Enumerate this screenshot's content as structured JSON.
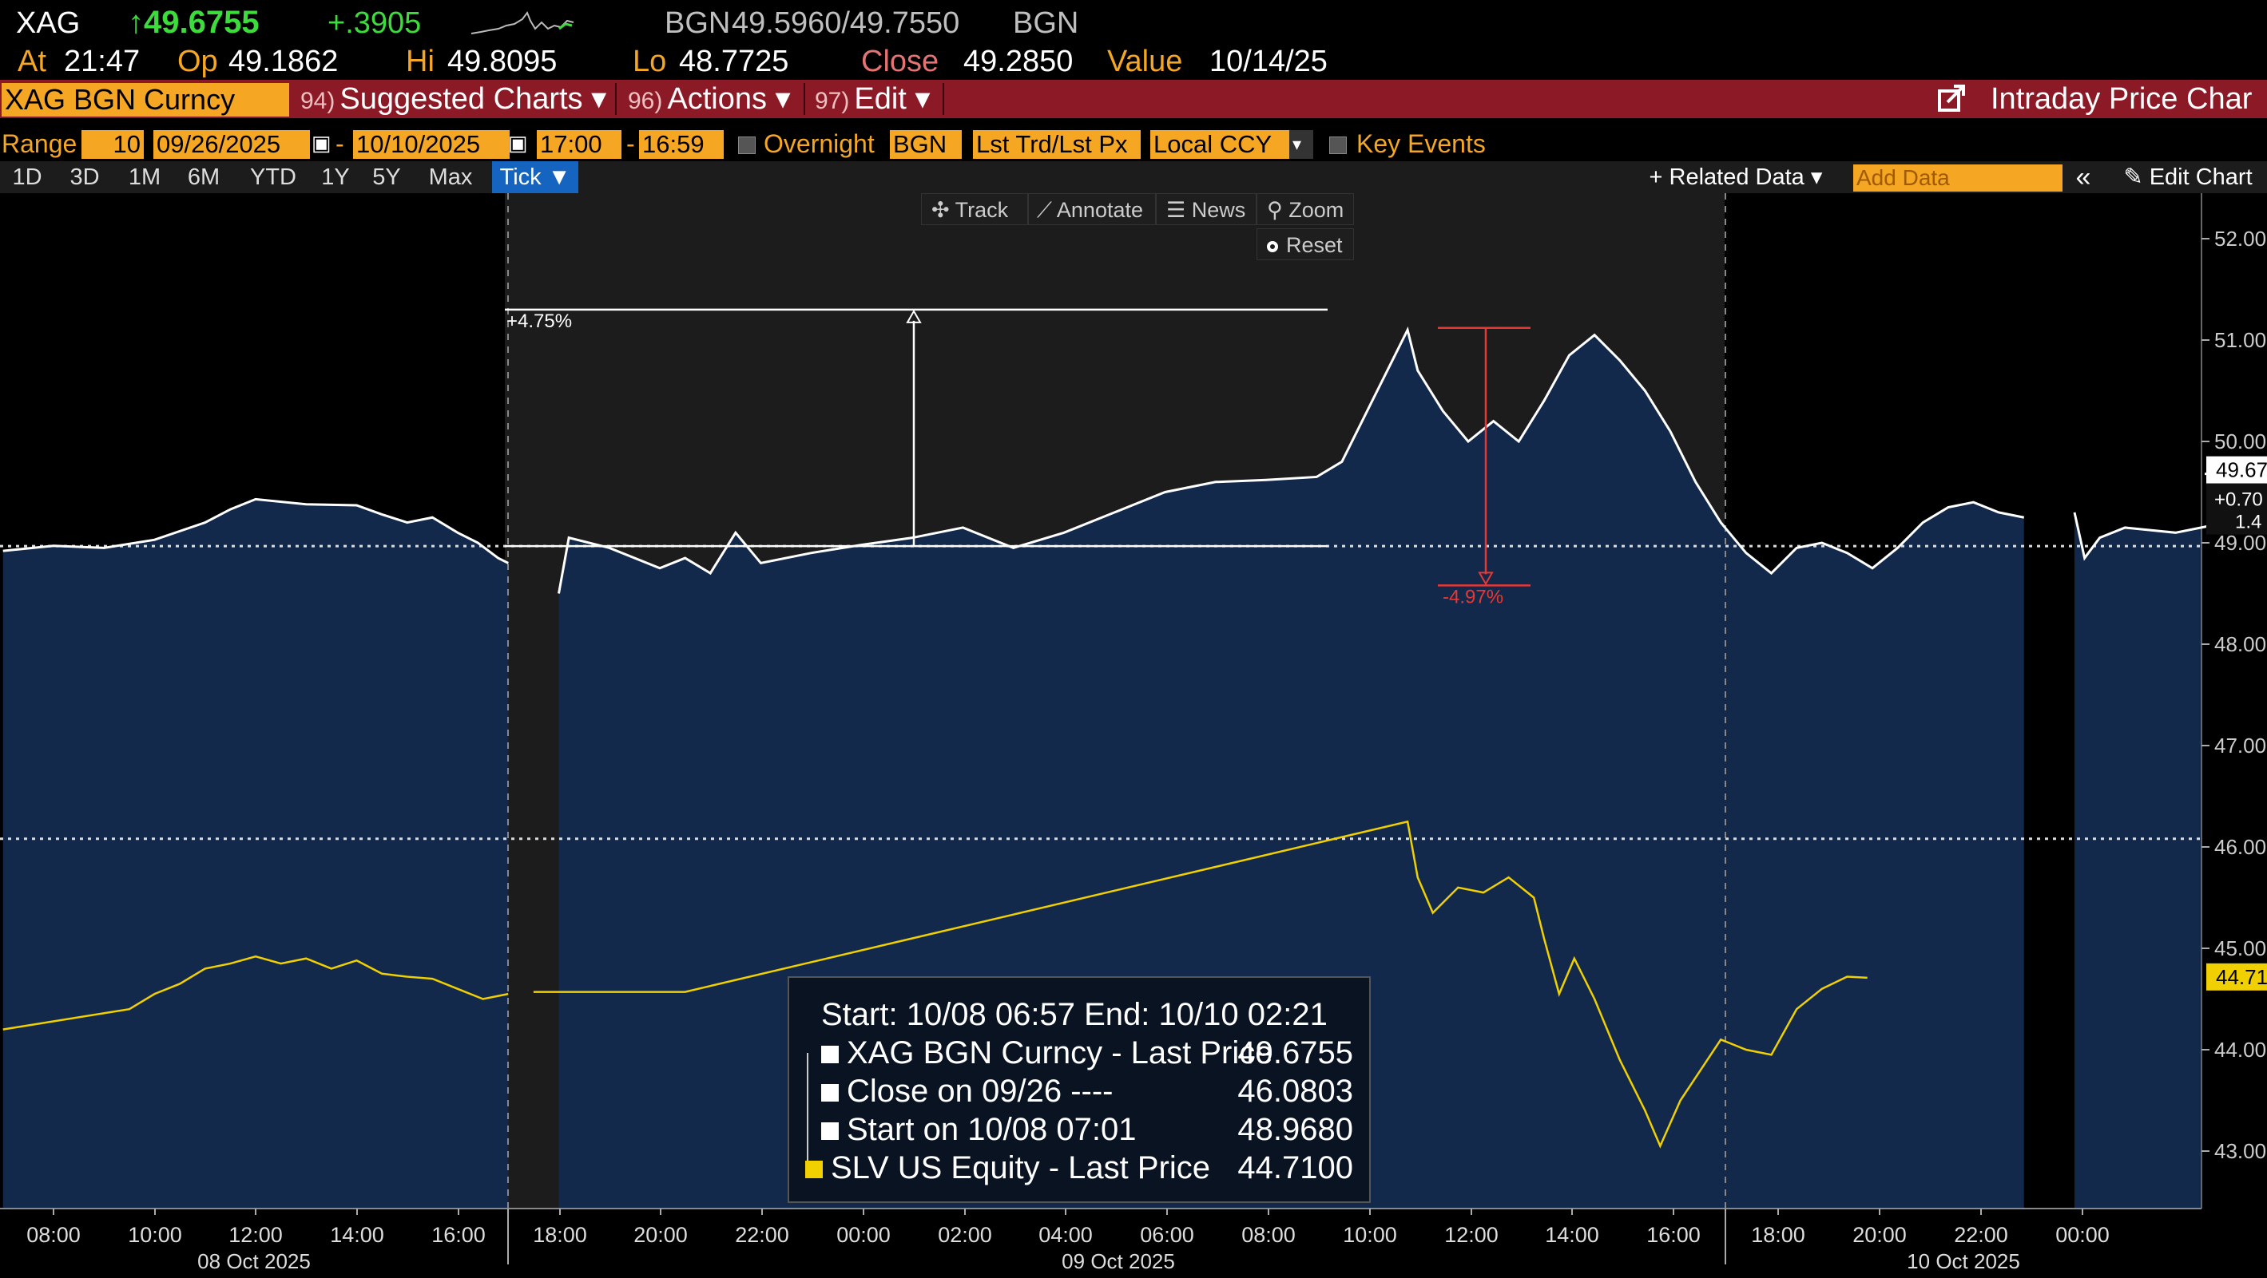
{
  "header": {
    "ticker": "XAG",
    "price": "↑49.6755",
    "change": "+.3905",
    "source_label": "BGN",
    "bid_ask": "49.5960/49.7550",
    "source_label2": "BGN",
    "at_label": "At",
    "at_time": "21:47",
    "open_label": "Op",
    "open": "49.1862",
    "hi_label": "Hi",
    "hi": "49.8095",
    "lo_label": "Lo",
    "lo": "48.7725",
    "close_label": "Close",
    "close": "49.2850",
    "value_label": "Value",
    "value_date": "10/14/25"
  },
  "menubar": {
    "security": "XAG BGN Curncy",
    "items": [
      {
        "num": "94)",
        "label": "Suggested Charts ▾"
      },
      {
        "num": "96)",
        "label": "Actions ▾"
      },
      {
        "num": "97)",
        "label": "Edit ▾"
      }
    ],
    "title": "Intraday Price Char"
  },
  "rangebar": {
    "range_label": "Range",
    "range_value": "10",
    "start_date": "09/26/2025",
    "dash": "-",
    "end_date": "10/10/2025",
    "start_time": "17:00",
    "end_time": "16:59",
    "overnight_label": "Overnight",
    "source": "BGN",
    "price_type": "Lst Trd/Lst Px",
    "currency": "Local CCY",
    "key_events_label": "Key Events"
  },
  "periodbar": {
    "periods": [
      "1D",
      "3D",
      "1M",
      "6M",
      "YTD",
      "1Y",
      "5Y",
      "Max"
    ],
    "tick_label": "Tick ▼",
    "related_data": "+ Related Data ▾",
    "add_data_placeholder": "Add Data",
    "collapse": "«",
    "edit_chart": "✎ Edit Chart"
  },
  "toolbar": {
    "track": "✣ Track",
    "annotate": "⟋ Annotate",
    "news": "☰ News",
    "zoom": "⚲ Zoom",
    "reset": "Reset"
  },
  "annotations": {
    "up_pct": "+4.75%",
    "down_pct": "-4.97%"
  },
  "legend": {
    "header": "Start: 10/08 06:57 End: 10/10 02:21",
    "rows": [
      {
        "label": "XAG BGN Curncy - Last Price",
        "value": "49.6755",
        "color": "#ffffff"
      },
      {
        "label": "Close on 09/26 ----",
        "value": "46.0803",
        "color": "#ffffff"
      },
      {
        "label": "Start on 10/08 07:01",
        "value": "48.9680",
        "color": "#ffffff"
      },
      {
        "label": "SLV US Equity - Last Price",
        "value": "44.7100",
        "color": "#f0d000"
      }
    ]
  },
  "axis_tags": {
    "last_price": "49.67",
    "change": "+0.70",
    "pct": "1.4",
    "slv_last": "44.71"
  },
  "colors": {
    "background": "#000000",
    "area_fill": "#13294b",
    "xag_line": "#ffffff",
    "slv_line": "#f0d000",
    "annotation_down": "#e53935",
    "accent": "#f5a623",
    "menubar": "#8c1a26"
  },
  "chart_data": {
    "type": "line",
    "y_axis": {
      "ticks": [
        "52.00",
        "51.00",
        "50.00",
        "49.00",
        "48.00",
        "47.00",
        "46.00",
        "45.00",
        "44.00",
        "43.00"
      ],
      "ylim": [
        42.5,
        52.2
      ]
    },
    "x_axis": {
      "tick_labels": [
        "08:00",
        "10:00",
        "12:00",
        "14:00",
        "16:00",
        "18:00",
        "20:00",
        "22:00",
        "00:00",
        "02:00",
        "04:00",
        "06:00",
        "08:00",
        "10:00",
        "12:00",
        "14:00",
        "16:00",
        "18:00",
        "20:00",
        "22:00",
        "00:00"
      ],
      "date_labels": [
        "08 Oct 2025",
        "09 Oct 2025",
        "10 Oct 2025"
      ]
    },
    "reference_lines": [
      {
        "name": "Close on 09/26",
        "y": 46.0803
      },
      {
        "name": "Start on 10/08 07:01",
        "y": 48.968
      }
    ],
    "series": [
      {
        "name": "XAG BGN Curncy - Last Price",
        "segments": [
          [
            [
              7.0,
              48.92
            ],
            [
              8.0,
              48.97
            ],
            [
              9.0,
              48.95
            ],
            [
              10.0,
              49.03
            ],
            [
              11.0,
              49.2
            ],
            [
              11.5,
              49.33
            ],
            [
              12.0,
              49.43
            ],
            [
              13.0,
              49.38
            ],
            [
              14.0,
              49.37
            ],
            [
              14.5,
              49.28
            ],
            [
              15.0,
              49.2
            ],
            [
              15.5,
              49.25
            ],
            [
              16.0,
              49.1
            ],
            [
              16.4,
              49.0
            ],
            [
              16.8,
              48.85
            ],
            [
              17.0,
              48.8
            ]
          ],
          [
            [
              18.0,
              48.5
            ],
            [
              18.2,
              49.05
            ],
            [
              19.0,
              48.95
            ],
            [
              20.0,
              48.75
            ],
            [
              20.5,
              48.85
            ],
            [
              21.0,
              48.7
            ],
            [
              21.5,
              49.1
            ],
            [
              22.0,
              48.8
            ],
            [
              23.0,
              48.9
            ],
            [
              24.0,
              48.98
            ],
            [
              25.0,
              49.05
            ],
            [
              26.0,
              49.15
            ],
            [
              27.0,
              48.95
            ],
            [
              28.0,
              49.1
            ],
            [
              29.0,
              49.3
            ],
            [
              30.0,
              49.5
            ],
            [
              31.0,
              49.6
            ],
            [
              32.0,
              49.62
            ],
            [
              33.0,
              49.65
            ],
            [
              33.5,
              49.8
            ],
            [
              34.0,
              50.3
            ],
            [
              34.5,
              50.8
            ],
            [
              34.8,
              51.1
            ],
            [
              35.0,
              50.7
            ],
            [
              35.5,
              50.3
            ],
            [
              36.0,
              50.0
            ],
            [
              36.5,
              50.2
            ],
            [
              37.0,
              50.0
            ],
            [
              37.5,
              50.4
            ],
            [
              38.0,
              50.85
            ],
            [
              38.5,
              51.05
            ],
            [
              39.0,
              50.8
            ],
            [
              39.5,
              50.5
            ],
            [
              40.0,
              50.1
            ],
            [
              40.5,
              49.6
            ],
            [
              41.0,
              49.2
            ],
            [
              41.5,
              48.9
            ],
            [
              42.0,
              48.7
            ],
            [
              42.5,
              48.95
            ],
            [
              43.0,
              49.0
            ],
            [
              43.5,
              48.9
            ],
            [
              44.0,
              48.75
            ],
            [
              44.5,
              48.95
            ],
            [
              45.0,
              49.2
            ],
            [
              45.5,
              49.35
            ],
            [
              46.0,
              49.4
            ],
            [
              46.5,
              49.3
            ],
            [
              47.0,
              49.25
            ]
          ],
          [
            [
              48.0,
              49.3
            ],
            [
              48.2,
              48.85
            ],
            [
              48.5,
              49.05
            ],
            [
              49.0,
              49.15
            ],
            [
              50.0,
              49.1
            ],
            [
              51.0,
              49.2
            ],
            [
              51.5,
              49.45
            ],
            [
              52.0,
              49.65
            ],
            [
              52.5,
              49.75
            ],
            [
              53.0,
              49.7
            ],
            [
              53.3,
              49.68
            ]
          ]
        ]
      },
      {
        "name": "SLV US Equity - Last Price",
        "segments": [
          [
            [
              7.0,
              44.2
            ],
            [
              9.5,
              44.4
            ],
            [
              10.0,
              44.55
            ],
            [
              10.5,
              44.65
            ],
            [
              11.0,
              44.8
            ],
            [
              11.5,
              44.85
            ],
            [
              12.0,
              44.92
            ],
            [
              12.5,
              44.85
            ],
            [
              13.0,
              44.9
            ],
            [
              13.5,
              44.8
            ],
            [
              14.0,
              44.88
            ],
            [
              14.5,
              44.75
            ],
            [
              15.0,
              44.72
            ],
            [
              15.5,
              44.7
            ],
            [
              16.0,
              44.6
            ],
            [
              16.5,
              44.5
            ],
            [
              17.0,
              44.55
            ]
          ],
          [
            [
              17.5,
              44.57
            ],
            [
              20.5,
              44.57
            ],
            [
              34.8,
              46.25
            ],
            [
              35.0,
              45.7
            ],
            [
              35.3,
              45.35
            ],
            [
              35.8,
              45.6
            ],
            [
              36.3,
              45.55
            ],
            [
              36.8,
              45.7
            ],
            [
              37.3,
              45.5
            ],
            [
              37.5,
              45.1
            ],
            [
              37.8,
              44.55
            ],
            [
              38.1,
              44.9
            ],
            [
              38.5,
              44.5
            ],
            [
              39.0,
              43.9
            ],
            [
              39.5,
              43.4
            ],
            [
              39.8,
              43.05
            ],
            [
              40.2,
              43.5
            ],
            [
              40.6,
              43.8
            ],
            [
              41.0,
              44.1
            ],
            [
              41.5,
              44.0
            ],
            [
              42.0,
              43.95
            ],
            [
              42.5,
              44.4
            ],
            [
              43.0,
              44.6
            ],
            [
              43.5,
              44.72
            ],
            [
              43.9,
              44.71
            ]
          ]
        ]
      }
    ],
    "annotations": [
      {
        "label": "+4.75%",
        "from": 48.968,
        "to": 51.3
      },
      {
        "label": "-4.97%",
        "from": 51.12,
        "to": 48.58
      }
    ]
  }
}
